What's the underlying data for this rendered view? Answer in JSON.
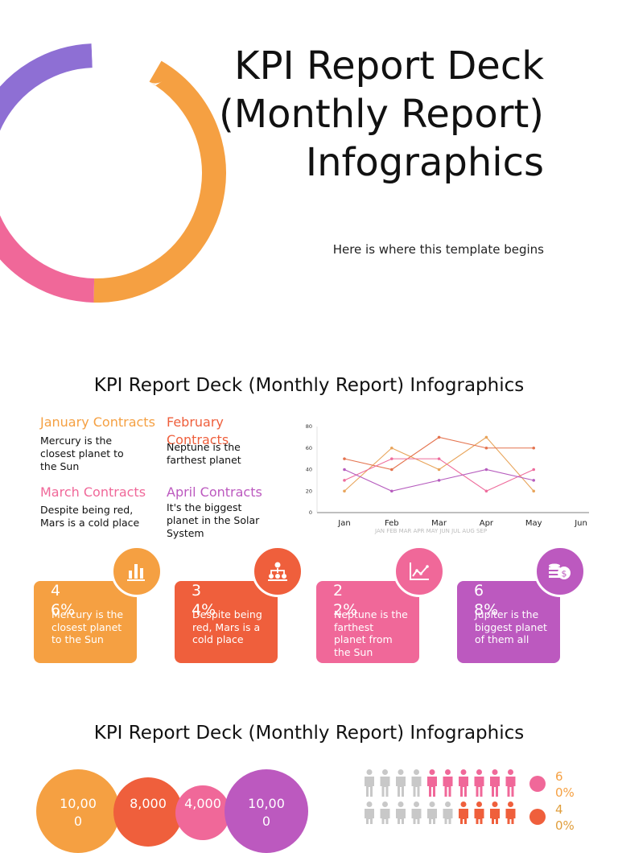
{
  "slide1": {
    "title": "KPI Report Deck (Monthly Report) Infographics",
    "subtitle": "Here is where this template begins",
    "donut": {
      "segments": [
        {
          "value": 42,
          "color": "#F5A042"
        },
        {
          "value": 20,
          "color": "#F06899"
        },
        {
          "value": 9,
          "color": "#EEEEEE"
        },
        {
          "value": 20,
          "color": "#8E6FD4"
        },
        {
          "value": 9,
          "color": "#FFFFFF"
        }
      ]
    }
  },
  "slide2": {
    "title": "KPI Report Deck (Monthly Report) Infographics",
    "contracts": [
      {
        "title": "January Contracts",
        "text": "Mercury is the closest planet to the Sun",
        "color": "#F5A042"
      },
      {
        "title": "February Contracts",
        "text": "Neptune is the farthest planet",
        "color": "#EF5F3C"
      },
      {
        "title": "March Contracts",
        "text": "Despite being red, Mars is a cold place",
        "color": "#F06899"
      },
      {
        "title": "April Contracts",
        "text": "It's the biggest planet in the Solar System",
        "color": "#BC59BF"
      }
    ],
    "chart_data": {
      "type": "line",
      "categories": [
        "Jan",
        "Feb",
        "Mar",
        "Apr",
        "May",
        "Jun"
      ],
      "faint_labels": "JAN FEB MAR APR MAY JUN JUL AUG SEP",
      "ylim": [
        0,
        80
      ],
      "yticks": [
        0,
        20,
        40,
        60,
        80
      ],
      "series": [
        {
          "color": "#E8A45A",
          "values": [
            20,
            60,
            40,
            70,
            20,
            null
          ]
        },
        {
          "color": "#E4734E",
          "values": [
            50,
            40,
            70,
            60,
            60,
            null
          ]
        },
        {
          "color": "#EE6C9C",
          "values": [
            30,
            50,
            50,
            20,
            40,
            null
          ]
        },
        {
          "color": "#B65CBE",
          "values": [
            40,
            20,
            30,
            40,
            30,
            null
          ]
        }
      ]
    },
    "cards": [
      {
        "pct": "46%",
        "desc": "Mercury is the closest planet to the Sun",
        "color": "#F5A042",
        "icon": "bar-chart-icon"
      },
      {
        "pct": "34%",
        "desc": "Despite being red, Mars is a cold place",
        "color": "#EF5F3C",
        "icon": "network-icon"
      },
      {
        "pct": "22%",
        "desc": "Neptune is the farthest planet from the Sun",
        "color": "#F06899",
        "icon": "line-chart-icon"
      },
      {
        "pct": "68%",
        "desc": "Jupiter is the biggest planet of them all",
        "color": "#BC59BF",
        "icon": "coins-icon"
      }
    ]
  },
  "slide3": {
    "title": "KPI Report Deck (Monthly Report) Infographics",
    "bubbles": [
      {
        "value": "10,000",
        "color": "#F5A042"
      },
      {
        "value": "8,000",
        "color": "#EF5F3C"
      },
      {
        "value": "4,000",
        "color": "#F06899"
      },
      {
        "value": "10,000",
        "color": "#BC59BF"
      }
    ],
    "people_rows": [
      {
        "pct": "60%",
        "filled": 6,
        "total": 10,
        "color": "#F06899",
        "text_color": "#F5A042"
      },
      {
        "pct": "40%",
        "filled": 4,
        "total": 10,
        "color": "#EF5F3C",
        "text_color": "#E09E3C"
      }
    ]
  }
}
